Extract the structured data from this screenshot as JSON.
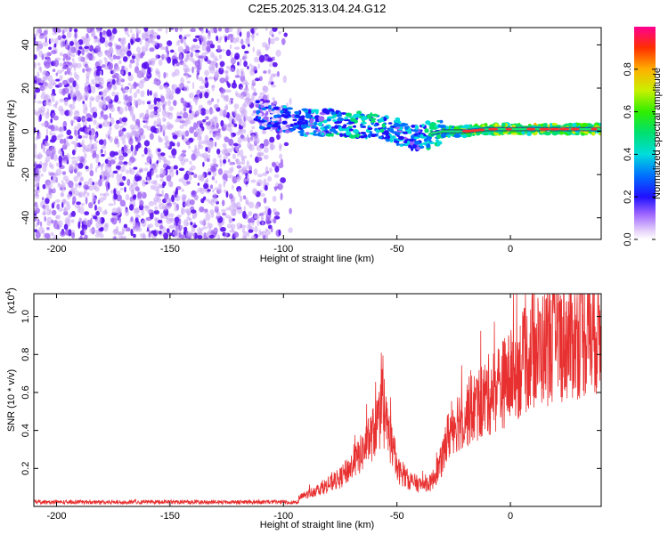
{
  "title": "C2E5.2025.313.04.24.G12",
  "chart_data": [
    {
      "type": "heatmap",
      "xlabel": "Height of straight line (km)",
      "ylabel": "Frequency (Hz)",
      "xlim": [
        -210,
        40
      ],
      "ylim": [
        -50,
        48
      ],
      "xticks": [
        -200,
        -150,
        -100,
        -50,
        0
      ],
      "yticks": [
        -40,
        -20,
        0,
        20,
        40
      ],
      "xtick_labels": [
        "-200",
        "-150",
        "-100",
        "-50",
        "0"
      ],
      "ytick_labels": [
        "-40",
        "-20",
        "0",
        "20",
        "40"
      ],
      "colorbar": {
        "label": "Normalized spectral amplitude",
        "range": [
          0,
          1
        ],
        "ticks": [
          0.0,
          0.2,
          0.4,
          0.6,
          0.8
        ],
        "tick_labels": [
          "0.0",
          "0.2",
          "0.4",
          "0.6",
          "0.8"
        ]
      },
      "noise_region_x": [
        -210,
        -95
      ],
      "signal_band": {
        "x": [
          -112,
          -100,
          -90,
          -80,
          -70,
          -60,
          -50,
          -40,
          -35,
          -30,
          -20,
          -10,
          0,
          10,
          20,
          30,
          40
        ],
        "y": [
          8,
          6,
          4,
          4,
          3,
          2,
          0,
          -4,
          -1,
          0,
          0,
          1,
          1,
          1,
          1,
          1,
          1
        ],
        "amplitude": [
          0.2,
          0.25,
          0.3,
          0.35,
          0.4,
          0.4,
          0.35,
          0.3,
          0.45,
          0.5,
          0.55,
          0.6,
          0.65,
          0.65,
          0.6,
          0.6,
          0.6
        ]
      }
    },
    {
      "type": "line",
      "xlabel": "Height of straight line (km)",
      "ylabel": "SNR (10 * v/v)",
      "y_scale_label": "(x10",
      "y_scale_exponent": "4",
      "y_scale_close": ")",
      "xlim": [
        -210,
        40
      ],
      "ylim": [
        0,
        1.12
      ],
      "xticks": [
        -200,
        -150,
        -100,
        -50,
        0
      ],
      "yticks": [
        0.2,
        0.4,
        0.6,
        0.8,
        1.0
      ],
      "xtick_labels": [
        "-200",
        "-150",
        "-100",
        "-50",
        "0"
      ],
      "ytick_labels": [
        "0.2",
        "0.4",
        "0.6",
        "0.8",
        "1.0"
      ],
      "color": "#e83030",
      "envelope": {
        "x": [
          -210,
          -100,
          -95,
          -90,
          -85,
          -80,
          -75,
          -70,
          -65,
          -60,
          -57,
          -55,
          -52,
          -50,
          -45,
          -40,
          -35,
          -30,
          -28,
          -25,
          -20,
          -15,
          -10,
          -5,
          0,
          5,
          10,
          15,
          20,
          25,
          30,
          35,
          40
        ],
        "y": [
          0.02,
          0.02,
          0.04,
          0.07,
          0.1,
          0.13,
          0.17,
          0.24,
          0.33,
          0.45,
          0.55,
          0.5,
          0.36,
          0.22,
          0.16,
          0.13,
          0.14,
          0.28,
          0.4,
          0.5,
          0.55,
          0.6,
          0.66,
          0.72,
          0.77,
          0.85,
          0.92,
          0.95,
          0.98,
          1.0,
          1.02,
          1.04,
          1.06
        ]
      }
    }
  ]
}
